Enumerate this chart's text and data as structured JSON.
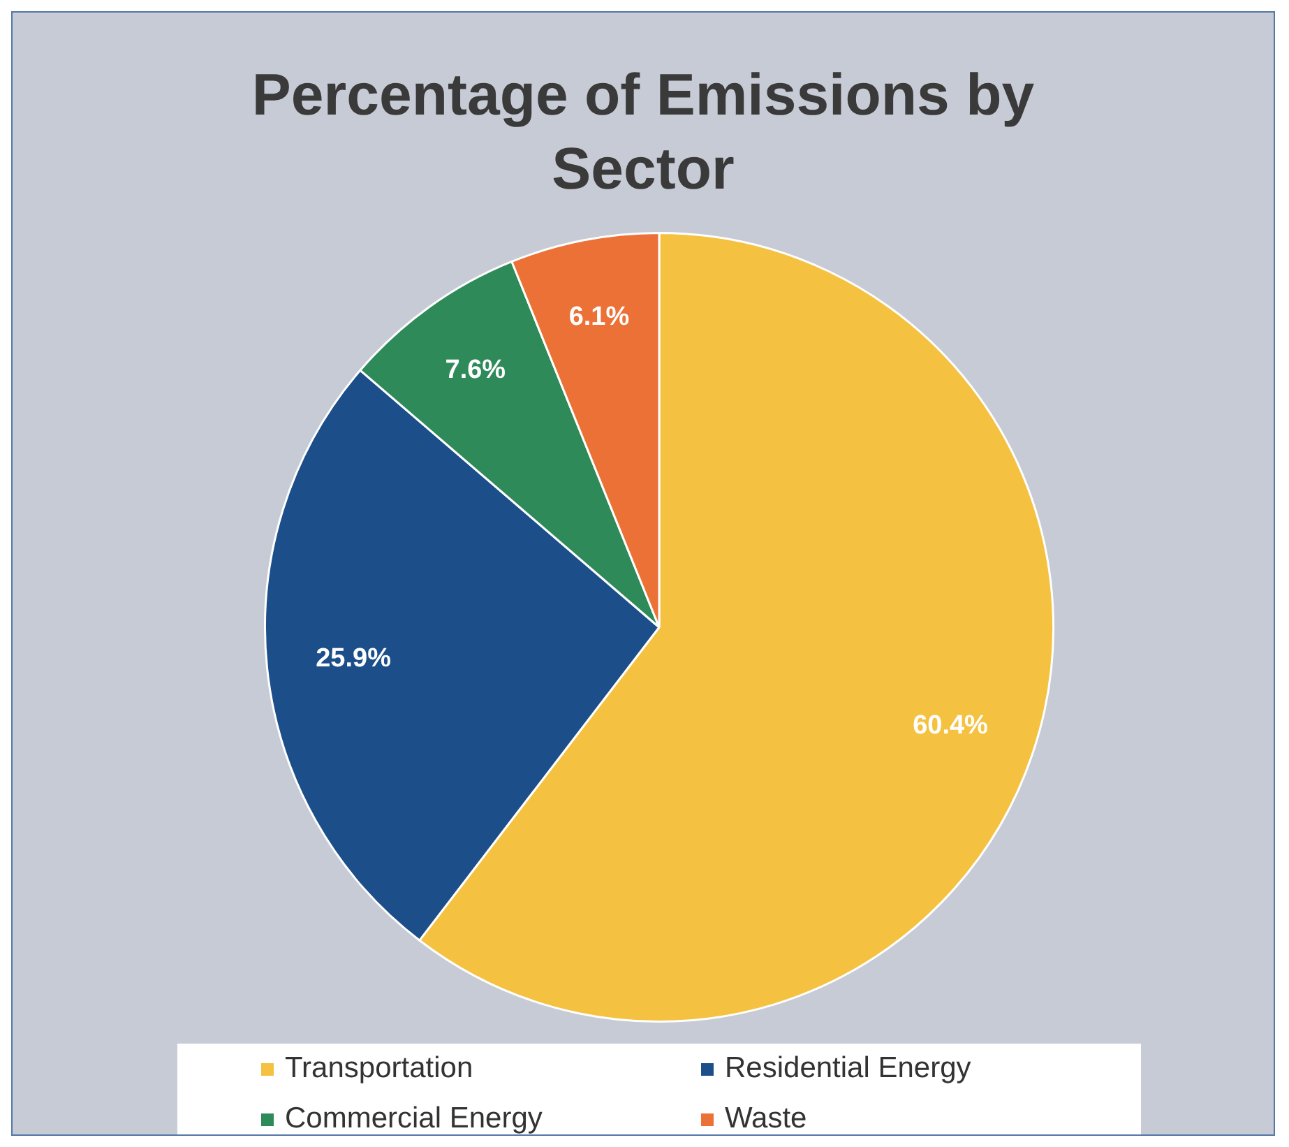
{
  "chart_data": {
    "type": "pie",
    "title": "Percentage of Emissions by Sector",
    "categories": [
      "Transportation",
      "Residential Energy",
      "Commercial Energy",
      "Waste"
    ],
    "values": [
      60.4,
      25.9,
      7.6,
      6.1
    ],
    "colors": [
      "#f5c140",
      "#1c4f8a",
      "#2f8a5a",
      "#ec7136"
    ],
    "value_labels": [
      "60.4%",
      "25.9%",
      "7.6%",
      "6.1%"
    ],
    "legend": "bottom"
  }
}
